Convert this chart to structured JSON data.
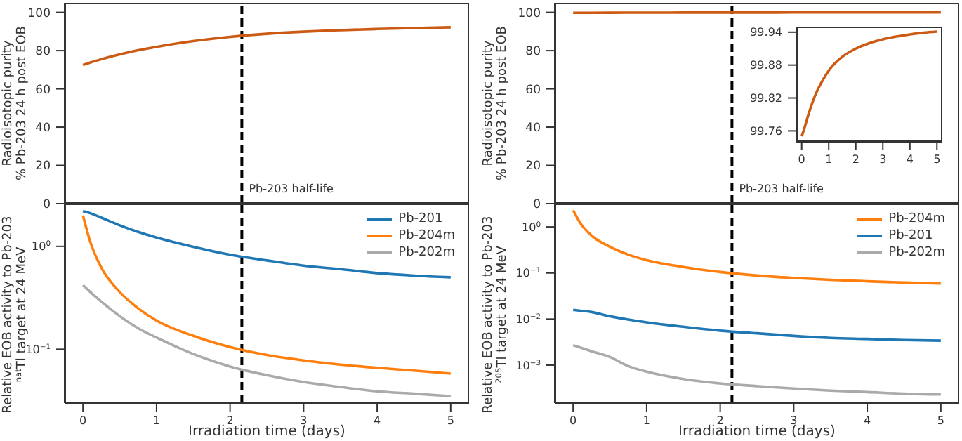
{
  "chart_data": [
    {
      "type": "line",
      "ylabel": "Radioisotopic purity\n% Pb-203 24 h post EOB",
      "x": [
        0,
        0.1,
        0.25,
        0.5,
        0.75,
        1,
        1.5,
        2,
        2.5,
        3,
        3.5,
        4,
        4.5,
        5
      ],
      "xlim": [
        -0.25,
        5.25
      ],
      "ylim": [
        0,
        105
      ],
      "yticks": [
        0,
        20,
        40,
        60,
        80,
        100
      ],
      "tick_labels": "y",
      "grid": false,
      "legend": false,
      "series": [
        {
          "color": "#cc5a12",
          "values": [
            72.5,
            73.8,
            75.5,
            78,
            80.2,
            82,
            85,
            87.2,
            88.8,
            89.9,
            90.7,
            91.3,
            91.8,
            92.2
          ]
        }
      ],
      "ref_lines": [
        {
          "axis": "x",
          "value": 2.16,
          "label": "Pb-203 half-life",
          "color": "#000000",
          "line_style": "dashed"
        }
      ]
    },
    {
      "type": "line",
      "xlabel": "Irradiation time (days)",
      "ylabel": "Relative EOB activity to Pb-203\n$^{nat}$Tl target at 24 MeV",
      "log": "y",
      "x": [
        0,
        0.1,
        0.25,
        0.5,
        0.75,
        1,
        1.5,
        2,
        2.5,
        3,
        3.5,
        4,
        4.5,
        5
      ],
      "xlim": [
        -0.25,
        5.25
      ],
      "xticks": [
        0,
        1,
        2,
        3,
        4,
        5
      ],
      "ylim": [
        0.03,
        2.6
      ],
      "yticks": [
        {
          "value": 1,
          "label": "10$^{0}$"
        },
        {
          "value": 0.1,
          "label": "10$^{−1}$"
        }
      ],
      "grid": false,
      "legend": "top right",
      "series": [
        {
          "name": "Pb-201",
          "color": "#1f77b4",
          "values": [
            2.2,
            2.1,
            1.9,
            1.6,
            1.38,
            1.22,
            0.99,
            0.83,
            0.73,
            0.65,
            0.6,
            0.55,
            0.52,
            0.5
          ]
        },
        {
          "name": "Pb-204m",
          "color": "#ff7f0e",
          "values": [
            2.0,
            1.1,
            0.62,
            0.36,
            0.25,
            0.19,
            0.135,
            0.105,
            0.088,
            0.078,
            0.071,
            0.066,
            0.062,
            0.058
          ]
        },
        {
          "name": "Pb-202m",
          "color": "#aaaaaa",
          "values": [
            0.42,
            0.36,
            0.29,
            0.21,
            0.16,
            0.13,
            0.09,
            0.068,
            0.056,
            0.048,
            0.043,
            0.039,
            0.037,
            0.035
          ]
        }
      ],
      "ref_lines": [
        {
          "axis": "x",
          "value": 2.16,
          "color": "#000000",
          "line_style": "dashed"
        }
      ]
    },
    {
      "type": "line",
      "ylabel": "Radioisotopic purity\n% Pb-203 24 h post EOB",
      "x": [
        0,
        0.1,
        0.25,
        0.5,
        0.75,
        1,
        1.5,
        2,
        2.5,
        3,
        3.5,
        4,
        4.5,
        5
      ],
      "xlim": [
        -0.25,
        5.25
      ],
      "ylim": [
        0,
        105
      ],
      "yticks": [
        0,
        20,
        40,
        60,
        80,
        100
      ],
      "tick_labels": "y",
      "grid": false,
      "legend": false,
      "series": [
        {
          "color": "#cc5a12",
          "values": [
            99.75,
            99.765,
            99.79,
            99.825,
            99.85,
            99.87,
            99.895,
            99.91,
            99.92,
            99.927,
            99.932,
            99.936,
            99.939,
            99.941
          ]
        }
      ],
      "ref_lines": [
        {
          "axis": "x",
          "value": 2.16,
          "label": "Pb-203 half-life",
          "color": "#000000",
          "line_style": "dashed"
        }
      ]
    },
    {
      "type": "line",
      "x": [
        0,
        0.1,
        0.25,
        0.5,
        0.75,
        1,
        1.5,
        2,
        2.5,
        3,
        3.5,
        4,
        4.5,
        5
      ],
      "xlim": [
        -0.2,
        5.2
      ],
      "xticks": [
        0,
        1,
        2,
        3,
        4,
        5
      ],
      "ylim": [
        99.74,
        99.95
      ],
      "yticks": [
        99.76,
        99.82,
        99.88,
        99.94
      ],
      "grid": false,
      "legend": false,
      "series": [
        {
          "color": "#cc5a12",
          "values": [
            99.75,
            99.765,
            99.79,
            99.825,
            99.85,
            99.87,
            99.895,
            99.91,
            99.92,
            99.927,
            99.932,
            99.936,
            99.939,
            99.941
          ]
        }
      ]
    },
    {
      "type": "line",
      "xlabel": "Irradiation time (days)",
      "ylabel": "Relative EOB activity to Pb-203\n$^{205}$Tl target at 24 MeV",
      "log": "y",
      "x": [
        0,
        0.1,
        0.25,
        0.5,
        0.75,
        1,
        1.5,
        2,
        2.5,
        3,
        3.5,
        4,
        4.5,
        5
      ],
      "xlim": [
        -0.25,
        5.25
      ],
      "xticks": [
        0,
        1,
        2,
        3,
        4,
        5
      ],
      "ylim": [
        0.00015,
        3.2
      ],
      "yticks": [
        {
          "value": 1,
          "label": "10$^{0}$"
        },
        {
          "value": 0.1,
          "label": "10$^{−1}$"
        },
        {
          "value": 0.01,
          "label": "10$^{−2}$"
        },
        {
          "value": 0.001,
          "label": "10$^{−3}$"
        }
      ],
      "grid": false,
      "legend": "top right",
      "series": [
        {
          "name": "Pb-204m",
          "color": "#ff7f0e",
          "values": [
            2.3,
            1.2,
            0.65,
            0.37,
            0.25,
            0.19,
            0.135,
            0.105,
            0.088,
            0.078,
            0.071,
            0.066,
            0.062,
            0.059
          ]
        },
        {
          "name": "Pb-201",
          "color": "#1f77b4",
          "values": [
            0.0158,
            0.0152,
            0.0142,
            0.0115,
            0.0098,
            0.0085,
            0.0068,
            0.0056,
            0.0049,
            0.0043,
            0.0039,
            0.0037,
            0.0035,
            0.0034
          ]
        },
        {
          "name": "Pb-202m",
          "color": "#aaaaaa",
          "values": [
            0.0027,
            0.0024,
            0.002,
            0.0015,
            0.00095,
            0.00072,
            0.0005,
            0.0004,
            0.00035,
            0.00031,
            0.00028,
            0.00026,
            0.00024,
            0.00023
          ]
        }
      ],
      "ref_lines": [
        {
          "axis": "x",
          "value": 2.16,
          "color": "#000000",
          "line_style": "dashed"
        }
      ]
    }
  ]
}
